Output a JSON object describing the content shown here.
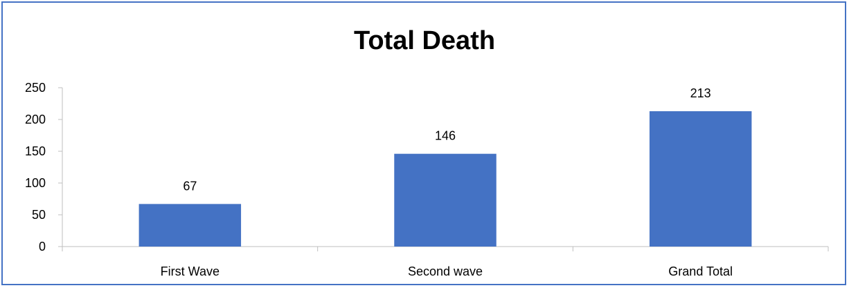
{
  "chart_data": {
    "type": "bar",
    "title": "Total Death",
    "categories": [
      "First Wave",
      "Second wave",
      "Grand Total"
    ],
    "values": [
      67,
      146,
      213
    ],
    "data_labels": [
      "67",
      "146",
      "213"
    ],
    "ylim": [
      0,
      250
    ],
    "yticks": [
      0,
      50,
      100,
      150,
      200,
      250
    ],
    "ytick_labels": [
      "0",
      "50",
      "100",
      "150",
      "200",
      "250"
    ],
    "xlabel": "",
    "ylabel": "",
    "grid": false,
    "legend": "none",
    "bar_color": "#4472c4",
    "border_color": "#4472c4"
  }
}
